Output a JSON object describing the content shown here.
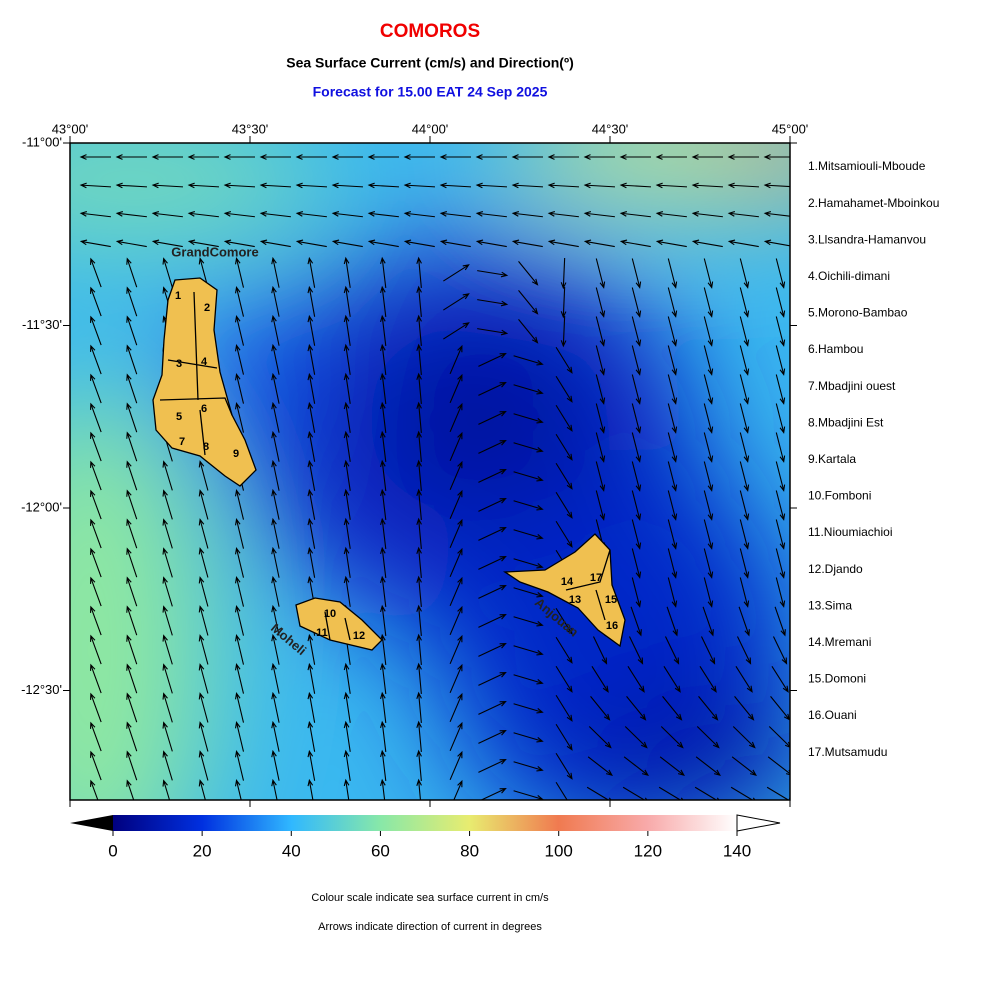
{
  "header": {
    "title": "COMOROS",
    "subtitle": "Sea Surface Current (cm/s) and Direction(º)",
    "forecast": "Forecast for  15.00 EAT 24 Sep 2025"
  },
  "map": {
    "lon_ticks": [
      {
        "value": 43,
        "label": "43°00'"
      },
      {
        "value": 43.5,
        "label": "43°30'"
      },
      {
        "value": 44,
        "label": "44°00'"
      },
      {
        "value": 44.5,
        "label": "44°30'"
      },
      {
        "value": 45,
        "label": "45°00'"
      }
    ],
    "lat_ticks": [
      {
        "value": -11,
        "label": "-11°00'"
      },
      {
        "value": -11.5,
        "label": "-11°30'"
      },
      {
        "value": -12,
        "label": "-12°00'"
      },
      {
        "value": -12.5,
        "label": "-12°30'"
      }
    ],
    "island_labels": [
      "GrandComore",
      "Moheli",
      "Anjouan"
    ],
    "region_markers": [
      "1",
      "2",
      "3",
      "4",
      "5",
      "6",
      "7",
      "8",
      "9",
      "10",
      "11",
      "12",
      "13",
      "14",
      "15",
      "16",
      "17"
    ]
  },
  "regions": [
    "1.Mitsamiouli-Mboude",
    "2.Hamahamet-Mboinkou",
    "3.Llsandra-Hamanvou",
    "4.Oichili-dimani",
    "5.Morono-Bambao",
    "6.Hambou",
    "7.Mbadjini ouest",
    "8.Mbadjini Est",
    "9.Kartala",
    "10.Fomboni",
    "11.Nioumiachioi",
    "12.Djando",
    "13.Sima",
    "14.Mremani",
    "15.Domoni",
    "16.Ouani",
    "17.Mutsamudu"
  ],
  "colorbar": {
    "lim": [
      0,
      140
    ],
    "ticks": [
      0,
      20,
      40,
      60,
      80,
      100,
      120,
      140
    ]
  },
  "notes": [
    "Colour scale indicate sea surface current in cm/s",
    "Arrows indicate direction of current in degrees"
  ]
}
